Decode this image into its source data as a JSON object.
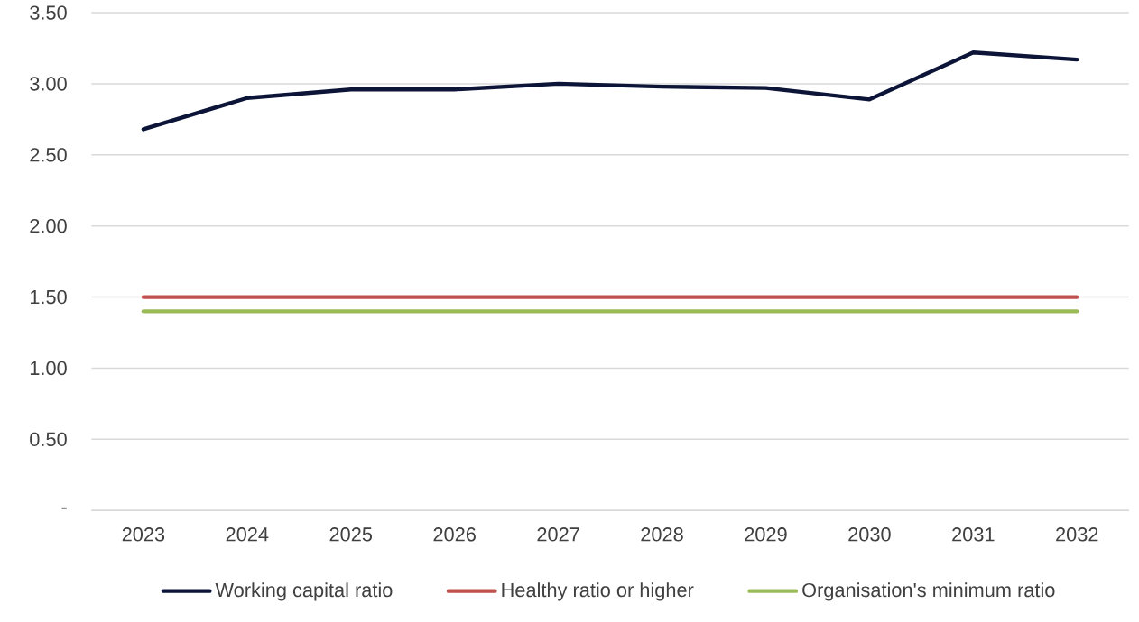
{
  "chart_data": {
    "type": "line",
    "categories": [
      "2023",
      "2024",
      "2025",
      "2026",
      "2027",
      "2028",
      "2029",
      "2030",
      "2031",
      "2032"
    ],
    "series": [
      {
        "name": "Working capital ratio",
        "color": "#0c1538",
        "values": [
          2.68,
          2.9,
          2.96,
          2.96,
          3.0,
          2.98,
          2.97,
          2.89,
          3.22,
          3.17
        ]
      },
      {
        "name": "Healthy ratio or higher",
        "color": "#c0504d",
        "values": [
          1.5,
          1.5,
          1.5,
          1.5,
          1.5,
          1.5,
          1.5,
          1.5,
          1.5,
          1.5
        ]
      },
      {
        "name": "Organisation's minimum ratio",
        "color": "#9bbb59",
        "values": [
          1.4,
          1.4,
          1.4,
          1.4,
          1.4,
          1.4,
          1.4,
          1.4,
          1.4,
          1.4
        ]
      }
    ],
    "ylim": [
      0,
      3.5
    ],
    "yticks": [
      {
        "value": 0,
        "label": "-"
      },
      {
        "value": 0.5,
        "label": "0.50"
      },
      {
        "value": 1.0,
        "label": "1.00"
      },
      {
        "value": 1.5,
        "label": "1.50"
      },
      {
        "value": 2.0,
        "label": "2.00"
      },
      {
        "value": 2.5,
        "label": "2.50"
      },
      {
        "value": 3.0,
        "label": "3.00"
      },
      {
        "value": 3.5,
        "label": "3.50"
      }
    ],
    "grid": "y",
    "legend": "bottom"
  }
}
